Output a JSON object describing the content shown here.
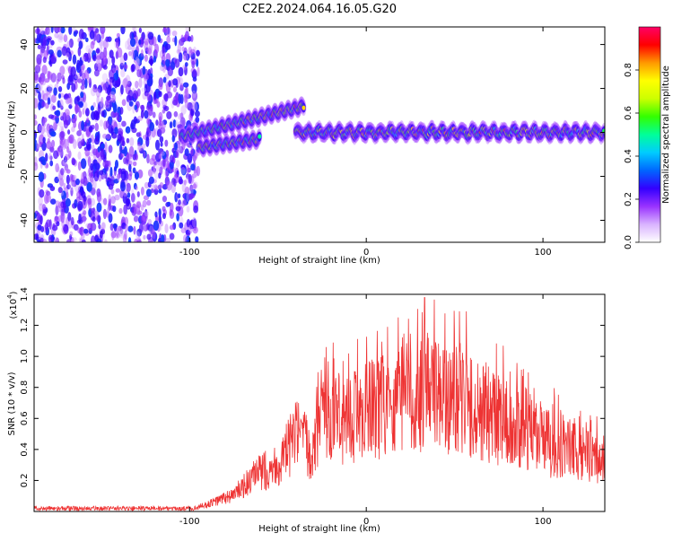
{
  "title": "C2E2.2024.064.16.05.G20",
  "chart_data": [
    {
      "type": "heatmap",
      "xlabel": "Height of straight line (km)",
      "ylabel": "Frequency (Hz)",
      "xlim": [
        -188,
        135
      ],
      "ylim": [
        -50,
        48
      ],
      "x_ticks": [
        -100,
        0,
        100
      ],
      "y_ticks": [
        -40,
        -20,
        0,
        20,
        40
      ],
      "grid": false,
      "colorbar": {
        "label": "Normalized spectral amplitude",
        "range": [
          0,
          1
        ],
        "ticks": [
          0.0,
          0.2,
          0.4,
          0.6,
          0.8
        ],
        "colormap": [
          "#ffffff",
          "#d9b3ff",
          "#9933ff",
          "#3300ff",
          "#0066ff",
          "#00ccff",
          "#00ff99",
          "#33ff00",
          "#ccff00",
          "#ffff00",
          "#ff9900",
          "#ff0000",
          "#ff0066"
        ]
      },
      "regions": [
        {
          "name": "noise",
          "x": [
            -188,
            -95
          ],
          "y": [
            -50,
            48
          ]
        },
        {
          "name": "signal_upper_branch",
          "x": [
            -105,
            -35
          ],
          "y_start": -2,
          "y_end": 12
        },
        {
          "name": "signal_lower_branch",
          "x": [
            -95,
            -60
          ],
          "y_start": -7,
          "y_end": -3
        },
        {
          "name": "signal_main",
          "x": [
            -40,
            135
          ],
          "y": [
            -5,
            5
          ]
        }
      ]
    },
    {
      "type": "line",
      "xlabel": "Height of straight line (km)",
      "ylabel": "SNR (10 * v/v)",
      "y_multiplier_label": "(x10",
      "y_multiplier_exp": "4",
      "y_multiplier_close": ")",
      "xlim": [
        -188,
        135
      ],
      "ylim": [
        0,
        1.4
      ],
      "x_ticks": [
        -100,
        0,
        100
      ],
      "y_ticks": [
        0.2,
        0.4,
        0.6,
        0.8,
        1.0,
        1.2,
        1.4
      ],
      "grid": false,
      "color": "#ee3333",
      "envelope": [
        {
          "x": -188,
          "y": 0.02
        },
        {
          "x": -100,
          "y": 0.02
        },
        {
          "x": -90,
          "y": 0.05
        },
        {
          "x": -75,
          "y": 0.12
        },
        {
          "x": -60,
          "y": 0.28
        },
        {
          "x": -48,
          "y": 0.35
        },
        {
          "x": -40,
          "y": 0.55
        },
        {
          "x": -32,
          "y": 0.45
        },
        {
          "x": -25,
          "y": 0.62
        },
        {
          "x": -10,
          "y": 0.68
        },
        {
          "x": 10,
          "y": 0.75
        },
        {
          "x": 30,
          "y": 0.85
        },
        {
          "x": 50,
          "y": 0.8
        },
        {
          "x": 70,
          "y": 0.68
        },
        {
          "x": 100,
          "y": 0.5
        },
        {
          "x": 135,
          "y": 0.35
        }
      ],
      "peak": {
        "x": 33,
        "y": 1.38
      }
    }
  ]
}
